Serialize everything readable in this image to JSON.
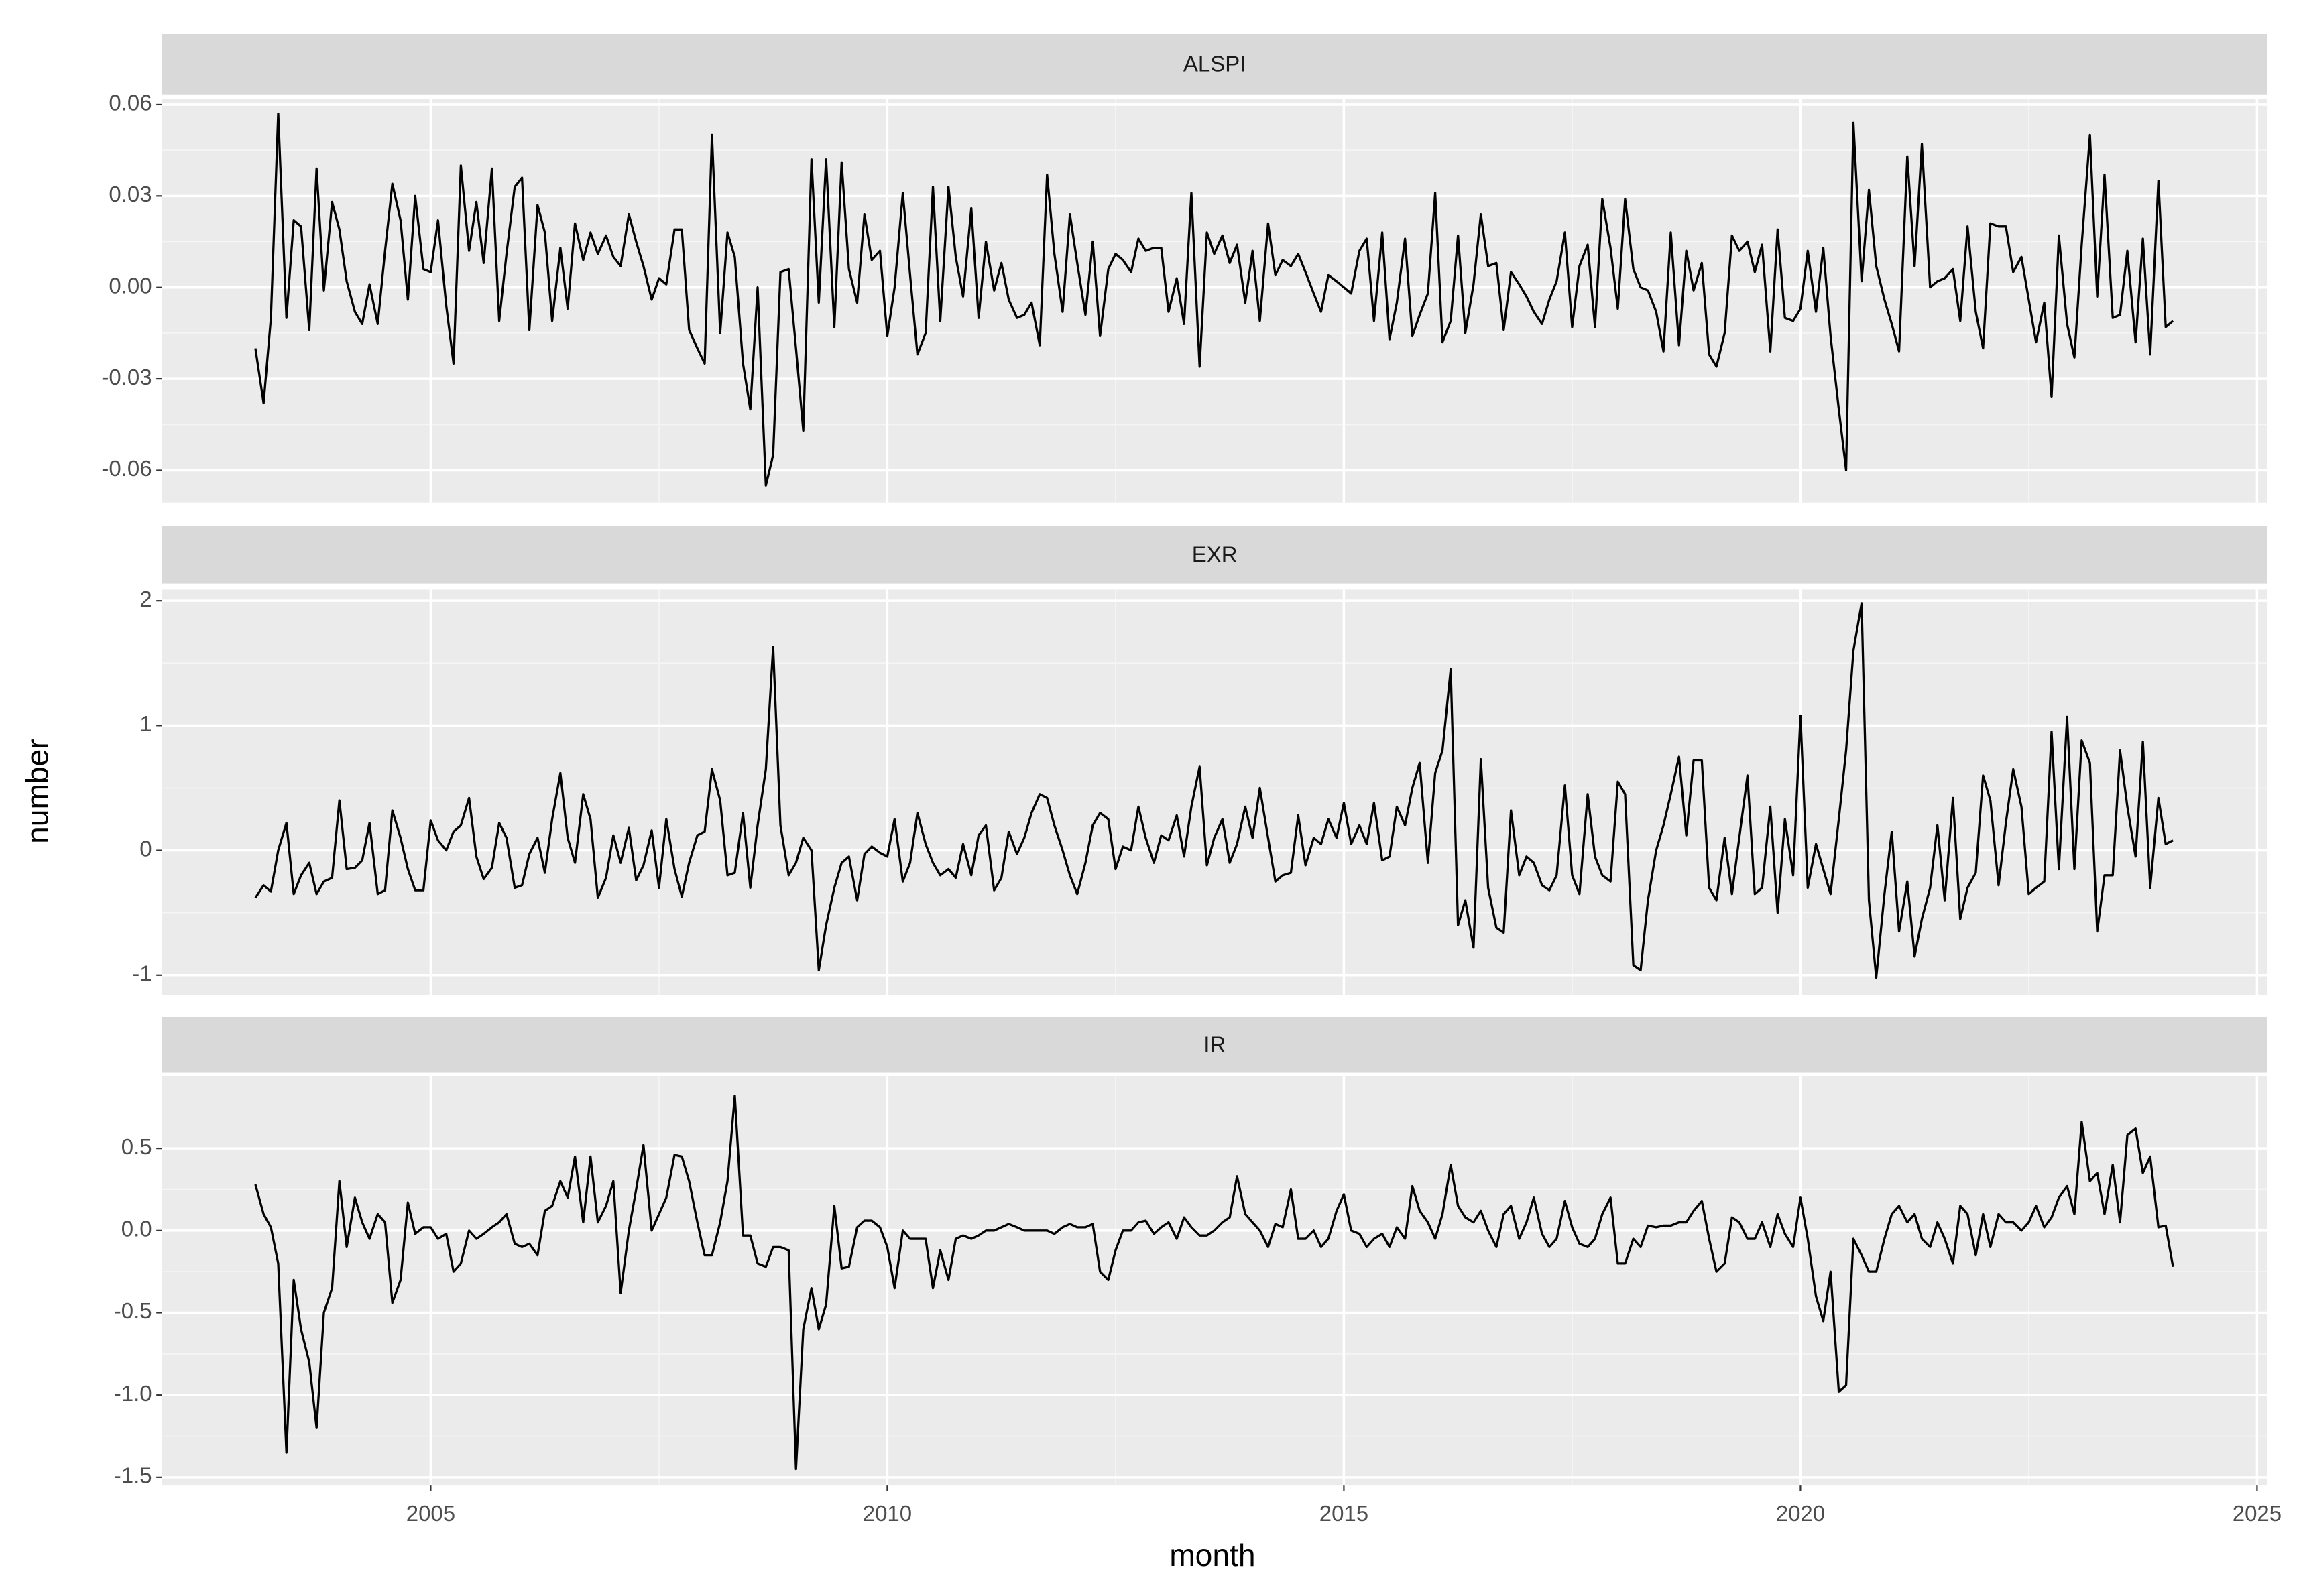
{
  "chart_data": {
    "type": "line",
    "xlabel": "month",
    "ylabel": "number",
    "color": "#000000",
    "grid": true,
    "xlim": [
      2002.06,
      2025.11
    ],
    "xticks": [
      2005,
      2010,
      2015,
      2020,
      2025
    ],
    "x": [
      2003.08,
      2003.17,
      2003.25,
      2003.33,
      2003.42,
      2003.5,
      2003.58,
      2003.67,
      2003.75,
      2003.83,
      2003.92,
      2004,
      2004.08,
      2004.17,
      2004.25,
      2004.33,
      2004.42,
      2004.5,
      2004.58,
      2004.67,
      2004.75,
      2004.83,
      2004.92,
      2005,
      2005.08,
      2005.17,
      2005.25,
      2005.33,
      2005.42,
      2005.5,
      2005.58,
      2005.67,
      2005.75,
      2005.83,
      2005.92,
      2006,
      2006.08,
      2006.17,
      2006.25,
      2006.33,
      2006.42,
      2006.5,
      2006.58,
      2006.67,
      2006.75,
      2006.83,
      2006.92,
      2007,
      2007.08,
      2007.17,
      2007.25,
      2007.33,
      2007.42,
      2007.5,
      2007.58,
      2007.67,
      2007.75,
      2007.83,
      2007.92,
      2008,
      2008.08,
      2008.17,
      2008.25,
      2008.33,
      2008.42,
      2008.5,
      2008.58,
      2008.67,
      2008.75,
      2008.83,
      2008.92,
      2009,
      2009.08,
      2009.17,
      2009.25,
      2009.33,
      2009.42,
      2009.5,
      2009.58,
      2009.67,
      2009.75,
      2009.83,
      2009.92,
      2010,
      2010.08,
      2010.17,
      2010.25,
      2010.33,
      2010.42,
      2010.5,
      2010.58,
      2010.67,
      2010.75,
      2010.83,
      2010.92,
      2011,
      2011.08,
      2011.17,
      2011.25,
      2011.33,
      2011.42,
      2011.5,
      2011.58,
      2011.67,
      2011.75,
      2011.83,
      2011.92,
      2012,
      2012.08,
      2012.17,
      2012.25,
      2012.33,
      2012.42,
      2012.5,
      2012.58,
      2012.67,
      2012.75,
      2012.83,
      2012.92,
      2013,
      2013.08,
      2013.17,
      2013.25,
      2013.33,
      2013.42,
      2013.5,
      2013.58,
      2013.67,
      2013.75,
      2013.83,
      2013.92,
      2014,
      2014.08,
      2014.17,
      2014.25,
      2014.33,
      2014.42,
      2014.5,
      2014.58,
      2014.67,
      2014.75,
      2014.83,
      2014.92,
      2015,
      2015.08,
      2015.17,
      2015.25,
      2015.33,
      2015.42,
      2015.5,
      2015.58,
      2015.67,
      2015.75,
      2015.83,
      2015.92,
      2016,
      2016.08,
      2016.17,
      2016.25,
      2016.33,
      2016.42,
      2016.5,
      2016.58,
      2016.67,
      2016.75,
      2016.83,
      2016.92,
      2017,
      2017.08,
      2017.17,
      2017.25,
      2017.33,
      2017.42,
      2017.5,
      2017.58,
      2017.67,
      2017.75,
      2017.83,
      2017.92,
      2018,
      2018.08,
      2018.17,
      2018.25,
      2018.33,
      2018.42,
      2018.5,
      2018.58,
      2018.67,
      2018.75,
      2018.83,
      2018.92,
      2019,
      2019.08,
      2019.17,
      2019.25,
      2019.33,
      2019.42,
      2019.5,
      2019.58,
      2019.67,
      2019.75,
      2019.83,
      2019.92,
      2020,
      2020.08,
      2020.17,
      2020.25,
      2020.33,
      2020.42,
      2020.5,
      2020.58,
      2020.67,
      2020.75,
      2020.83,
      2020.92,
      2021,
      2021.08,
      2021.17,
      2021.25,
      2021.33,
      2021.42,
      2021.5,
      2021.58,
      2021.67,
      2021.75,
      2021.83,
      2021.92,
      2022,
      2022.08,
      2022.17,
      2022.25,
      2022.33,
      2022.42,
      2022.5,
      2022.58,
      2022.67,
      2022.75,
      2022.83,
      2022.92,
      2023,
      2023.08,
      2023.17,
      2023.25,
      2023.33,
      2023.42,
      2023.5,
      2023.58,
      2023.67,
      2023.75,
      2023.83,
      2023.92,
      2024,
      2024.08
    ],
    "panels": [
      {
        "title": "ALSPI",
        "ylim": [
          -0.0706,
          0.0619
        ],
        "yticks": [
          -0.06,
          -0.03,
          {
            "value": 0,
            "label": "0.00"
          },
          0.03,
          0.06
        ],
        "values": [
          -0.02,
          -0.038,
          -0.01,
          0.057,
          -0.01,
          0.022,
          0.02,
          -0.014,
          0.039,
          -0.001,
          0.028,
          0.019,
          0.002,
          -0.008,
          -0.012,
          0.001,
          -0.012,
          0.012,
          0.034,
          0.022,
          -0.004,
          0.03,
          0.006,
          0.005,
          0.022,
          -0.006,
          -0.025,
          0.04,
          0.012,
          0.028,
          0.008,
          0.039,
          -0.011,
          0.011,
          0.033,
          0.036,
          -0.014,
          0.027,
          0.018,
          -0.011,
          0.013,
          -0.007,
          0.021,
          0.009,
          0.018,
          0.011,
          0.017,
          0.01,
          0.007,
          0.024,
          0.015,
          0.007,
          -0.004,
          0.003,
          0.001,
          0.019,
          0.019,
          -0.014,
          -0.02,
          -0.025,
          0.05,
          -0.015,
          0.018,
          0.01,
          -0.025,
          -0.04,
          0,
          -0.065,
          -0.055,
          0.005,
          0.006,
          -0.02,
          -0.047,
          0.042,
          -0.005,
          0.042,
          -0.013,
          0.041,
          0.006,
          -0.005,
          0.024,
          0.009,
          0.012,
          -0.016,
          0,
          0.031,
          0.004,
          -0.022,
          -0.015,
          0.033,
          -0.011,
          0.033,
          0.01,
          -0.003,
          0.026,
          -0.01,
          0.015,
          -0.001,
          0.008,
          -0.004,
          -0.01,
          -0.009,
          -0.005,
          -0.019,
          0.037,
          0.011,
          -0.008,
          0.024,
          0.008,
          -0.009,
          0.015,
          -0.016,
          0.006,
          0.011,
          0.009,
          0.005,
          0.016,
          0.012,
          0.013,
          0.013,
          -0.008,
          0.003,
          -0.012,
          0.031,
          -0.026,
          0.018,
          0.011,
          0.017,
          0.008,
          0.014,
          -0.005,
          0.012,
          -0.011,
          0.021,
          0.004,
          0.009,
          0.007,
          0.011,
          0.005,
          -0.002,
          -0.008,
          0.004,
          0.002,
          0,
          -0.002,
          0.012,
          0.016,
          -0.011,
          0.018,
          -0.017,
          -0.005,
          0.016,
          -0.016,
          -0.009,
          -0.002,
          0.031,
          -0.018,
          -0.011,
          0.017,
          -0.015,
          0.001,
          0.024,
          0.007,
          0.008,
          -0.014,
          0.005,
          0.001,
          -0.003,
          -0.008,
          -0.012,
          -0.004,
          0.002,
          0.018,
          -0.013,
          0.007,
          0.014,
          -0.013,
          0.029,
          0.013,
          -0.007,
          0.029,
          0.006,
          0,
          -0.001,
          -0.008,
          -0.021,
          0.018,
          -0.019,
          0.012,
          -0.001,
          0.008,
          -0.022,
          -0.026,
          -0.015,
          0.017,
          0.012,
          0.015,
          0.005,
          0.014,
          -0.021,
          0.019,
          -0.01,
          -0.011,
          -0.007,
          0.012,
          -0.008,
          0.013,
          -0.016,
          -0.04,
          -0.06,
          0.054,
          0.002,
          0.032,
          0.007,
          -0.004,
          -0.012,
          -0.021,
          0.043,
          0.007,
          0.047,
          0,
          0.002,
          0.003,
          0.006,
          -0.011,
          0.02,
          -0.008,
          -0.02,
          0.021,
          0.02,
          0.02,
          0.005,
          0.01,
          -0.004,
          -0.018,
          -0.005,
          -0.036,
          0.017,
          -0.012,
          -0.023,
          0.014,
          0.05,
          -0.003,
          0.037,
          -0.01,
          -0.009,
          0.012,
          -0.018,
          0.016,
          -0.022,
          0.035,
          -0.013,
          -0.011
        ]
      },
      {
        "title": "EXR",
        "ylim": [
          -1.157,
          2.09
        ],
        "yticks": [
          -1,
          0,
          1,
          2
        ],
        "values": [
          -0.38,
          -0.28,
          -0.33,
          0,
          0.22,
          -0.35,
          -0.2,
          -0.1,
          -0.35,
          -0.25,
          -0.22,
          0.4,
          -0.15,
          -0.14,
          -0.08,
          0.22,
          -0.35,
          -0.32,
          0.32,
          0.1,
          -0.15,
          -0.32,
          -0.32,
          0.24,
          0.08,
          0,
          0.15,
          0.2,
          0.42,
          -0.05,
          -0.23,
          -0.14,
          0.22,
          0.1,
          -0.3,
          -0.28,
          -0.03,
          0.1,
          -0.18,
          0.25,
          0.62,
          0.1,
          -0.1,
          0.45,
          0.25,
          -0.38,
          -0.22,
          0.12,
          -0.1,
          0.18,
          -0.24,
          -0.12,
          0.16,
          -0.3,
          0.25,
          -0.15,
          -0.37,
          -0.1,
          0.12,
          0.15,
          0.65,
          0.4,
          -0.2,
          -0.18,
          0.3,
          -0.3,
          0.2,
          0.65,
          1.63,
          0.2,
          -0.2,
          -0.1,
          0.1,
          0,
          -0.96,
          -0.6,
          -0.3,
          -0.1,
          -0.05,
          -0.4,
          -0.03,
          0.03,
          -0.02,
          -0.05,
          0.25,
          -0.25,
          -0.1,
          0.3,
          0.05,
          -0.1,
          -0.2,
          -0.15,
          -0.22,
          0.05,
          -0.2,
          0.12,
          0.2,
          -0.32,
          -0.22,
          0.15,
          -0.03,
          0.1,
          0.3,
          0.45,
          0.42,
          0.2,
          0,
          -0.2,
          -0.35,
          -0.1,
          0.2,
          0.3,
          0.25,
          -0.15,
          0.03,
          0,
          0.35,
          0.1,
          -0.1,
          0.12,
          0.08,
          0.28,
          -0.05,
          0.35,
          0.67,
          -0.12,
          0.1,
          0.25,
          -0.1,
          0.05,
          0.35,
          0.1,
          0.5,
          0.1,
          -0.25,
          -0.2,
          -0.18,
          0.28,
          -0.12,
          0.1,
          0.05,
          0.25,
          0.1,
          0.38,
          0.05,
          0.2,
          0.05,
          0.38,
          -0.08,
          -0.05,
          0.35,
          0.2,
          0.5,
          0.7,
          -0.1,
          0.62,
          0.8,
          1.45,
          -0.6,
          -0.4,
          -0.78,
          0.73,
          -0.3,
          -0.62,
          -0.66,
          0.32,
          -0.2,
          -0.05,
          -0.1,
          -0.28,
          -0.32,
          -0.2,
          0.52,
          -0.2,
          -0.35,
          0.45,
          -0.05,
          -0.2,
          -0.25,
          0.55,
          0.45,
          -0.92,
          -0.96,
          -0.4,
          0,
          0.2,
          0.45,
          0.75,
          0.12,
          0.72,
          0.72,
          -0.3,
          -0.4,
          0.1,
          -0.35,
          0.1,
          0.6,
          -0.35,
          -0.3,
          0.35,
          -0.5,
          0.25,
          -0.2,
          1.08,
          -0.3,
          0.05,
          -0.15,
          -0.35,
          0.25,
          0.8,
          1.6,
          1.98,
          -0.4,
          -1.02,
          -0.35,
          0.15,
          -0.65,
          -0.25,
          -0.85,
          -0.55,
          -0.3,
          0.2,
          -0.4,
          0.42,
          -0.55,
          -0.3,
          -0.18,
          0.6,
          0.4,
          -0.28,
          0.22,
          0.65,
          0.35,
          -0.35,
          -0.3,
          -0.25,
          0.95,
          -0.15,
          1.07,
          -0.15,
          0.88,
          0.7,
          -0.65,
          -0.2,
          -0.2,
          0.8,
          0.35,
          -0.05,
          0.87,
          -0.3,
          0.42,
          0.05,
          0.08
        ]
      },
      {
        "title": "IR",
        "ylim": [
          -1.55,
          0.941
        ],
        "yticks": [
          -1.5,
          {
            "value": -1,
            "label": "-1.0"
          },
          -0.5,
          {
            "value": 0,
            "label": "0.0"
          },
          0.5
        ],
        "values": [
          0.28,
          0.1,
          0.02,
          -0.2,
          -1.35,
          -0.3,
          -0.6,
          -0.8,
          -1.2,
          -0.5,
          -0.35,
          0.3,
          -0.1,
          0.2,
          0.05,
          -0.05,
          0.1,
          0.05,
          -0.44,
          -0.3,
          0.17,
          -0.02,
          0.02,
          0.02,
          -0.05,
          -0.02,
          -0.25,
          -0.2,
          0,
          -0.05,
          -0.02,
          0.02,
          0.05,
          0.1,
          -0.08,
          -0.1,
          -0.08,
          -0.15,
          0.12,
          0.15,
          0.3,
          0.2,
          0.45,
          0.05,
          0.45,
          0.05,
          0.15,
          0.3,
          -0.38,
          0,
          0.25,
          0.52,
          0,
          0.1,
          0.2,
          0.46,
          0.45,
          0.3,
          0.05,
          -0.15,
          -0.15,
          0.05,
          0.3,
          0.82,
          -0.03,
          -0.03,
          -0.2,
          -0.22,
          -0.1,
          -0.1,
          -0.12,
          -1.45,
          -0.6,
          -0.35,
          -0.6,
          -0.45,
          0.15,
          -0.23,
          -0.22,
          0.02,
          0.06,
          0.06,
          0.02,
          -0.1,
          -0.35,
          0,
          -0.05,
          -0.05,
          -0.05,
          -0.35,
          -0.12,
          -0.3,
          -0.05,
          -0.03,
          -0.05,
          -0.03,
          0,
          0,
          0.02,
          0.04,
          0.02,
          0,
          0,
          0,
          0,
          -0.02,
          0.02,
          0.04,
          0.02,
          0.02,
          0.04,
          -0.25,
          -0.3,
          -0.12,
          0,
          0,
          0.05,
          0.06,
          -0.02,
          0.02,
          0.05,
          -0.05,
          0.08,
          0.02,
          -0.03,
          -0.03,
          0,
          0.05,
          0.08,
          0.33,
          0.1,
          0.05,
          0,
          -0.1,
          0.04,
          0.02,
          0.25,
          -0.05,
          -0.05,
          0,
          -0.1,
          -0.05,
          0.12,
          0.22,
          0,
          -0.02,
          -0.1,
          -0.05,
          -0.02,
          -0.1,
          0.02,
          -0.05,
          0.27,
          0.12,
          0.05,
          -0.05,
          0.1,
          0.4,
          0.15,
          0.08,
          0.05,
          0.12,
          0,
          -0.1,
          0.1,
          0.15,
          -0.05,
          0.05,
          0.2,
          -0.02,
          -0.1,
          -0.05,
          0.18,
          0.02,
          -0.08,
          -0.1,
          -0.05,
          0.1,
          0.2,
          -0.2,
          -0.2,
          -0.05,
          -0.1,
          0.03,
          0.02,
          0.03,
          0.03,
          0.05,
          0.05,
          0.12,
          0.18,
          -0.05,
          -0.25,
          -0.2,
          0.08,
          0.05,
          -0.05,
          -0.05,
          0.05,
          -0.1,
          0.1,
          -0.02,
          -0.1,
          0.2,
          -0.05,
          -0.4,
          -0.55,
          -0.25,
          -0.98,
          -0.94,
          -0.05,
          -0.15,
          -0.25,
          -0.25,
          -0.05,
          0.1,
          0.15,
          0.05,
          0.1,
          -0.05,
          -0.1,
          0.05,
          -0.05,
          -0.2,
          0.15,
          0.1,
          -0.15,
          0.1,
          -0.1,
          0.1,
          0.05,
          0.05,
          0,
          0.05,
          0.15,
          0.02,
          0.08,
          0.2,
          0.27,
          0.1,
          0.66,
          0.3,
          0.35,
          0.1,
          0.4,
          0.05,
          0.58,
          0.62,
          0.35,
          0.45,
          0.02,
          0.03,
          -0.22
        ]
      }
    ]
  }
}
